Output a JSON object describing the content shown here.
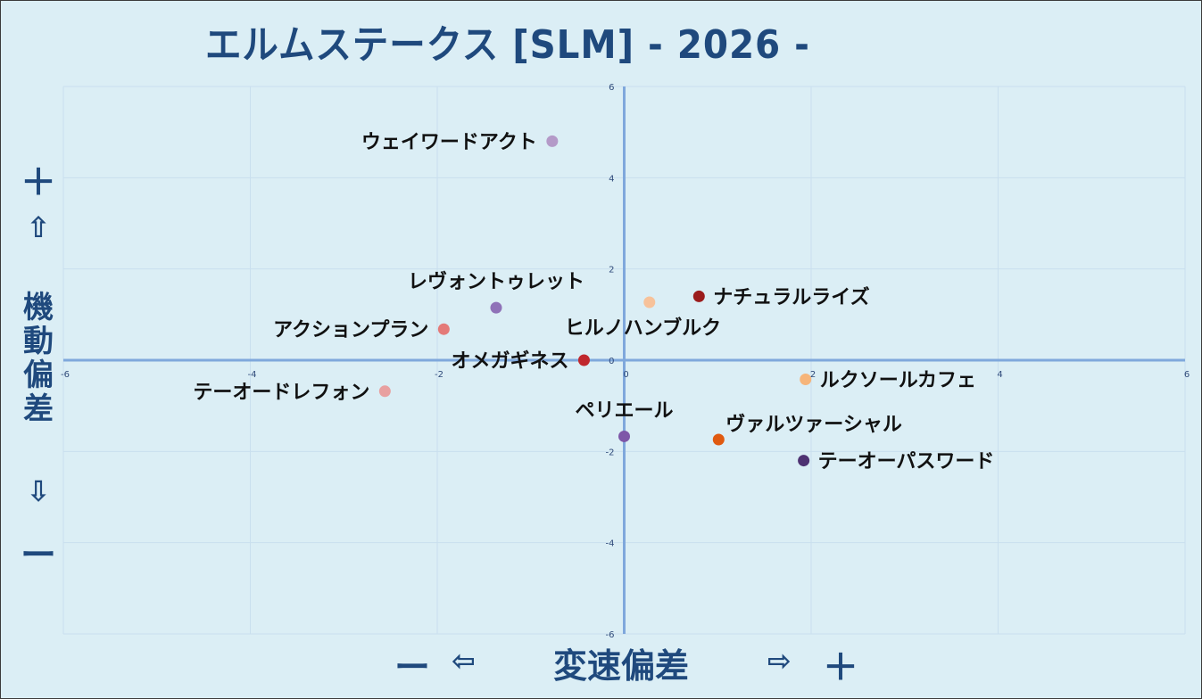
{
  "title": "エルムステークス [SLM]  - 2026 -",
  "y_axis": {
    "plus": "＋",
    "up_arrow": "⇧",
    "label": "機動偏差",
    "down_arrow": "⇩",
    "minus": "ー"
  },
  "x_axis": {
    "minus": "ー",
    "left_arrow": "⇦",
    "label": "変速偏差",
    "right_arrow": "⇨",
    "plus": "＋"
  },
  "chart_data": {
    "type": "scatter",
    "title": "エルムステークス [SLM]  - 2026 -",
    "xlabel": "変速偏差",
    "ylabel": "機動偏差",
    "xlim": [
      -6,
      6
    ],
    "ylim": [
      -6,
      6
    ],
    "x_ticks": [
      "-6",
      "-4",
      "-2",
      "0",
      "2",
      "4",
      "6"
    ],
    "y_ticks": [
      "6",
      "4",
      "2",
      "0",
      "-2",
      "-4",
      "-6"
    ],
    "grid": true,
    "points": [
      {
        "label": "ウェイワードアクト",
        "x": -0.77,
        "y": 4.8,
        "color": "#b49ac8",
        "label_side": "left"
      },
      {
        "label": "レヴォントゥレット",
        "x": -1.37,
        "y": 1.15,
        "color": "#8f72b8",
        "label_side": "above"
      },
      {
        "label": "アクションプラン",
        "x": -1.93,
        "y": 0.68,
        "color": "#e47a78",
        "label_side": "left"
      },
      {
        "label": "ヒルノハンブルク",
        "x": 0.27,
        "y": 1.27,
        "color": "#f7c29a",
        "label_side": "below"
      },
      {
        "label": "ナチュラルライズ",
        "x": 0.8,
        "y": 1.4,
        "color": "#9b1c1c",
        "label_side": "right"
      },
      {
        "label": "オメガギネス",
        "x": -0.43,
        "y": 0.0,
        "color": "#c0272d",
        "label_side": "left"
      },
      {
        "label": "テーオードレフォン",
        "x": -2.56,
        "y": -0.68,
        "color": "#e8a0a0",
        "label_side": "left"
      },
      {
        "label": "ルクソールカフェ",
        "x": 1.94,
        "y": -0.42,
        "color": "#f6b57a",
        "label_side": "right"
      },
      {
        "label": "ペリエール",
        "x": 0.0,
        "y": -1.67,
        "color": "#7e57a8",
        "label_side": "above"
      },
      {
        "label": "ヴァルツァーシャル",
        "x": 1.01,
        "y": -1.74,
        "color": "#e05a10",
        "label_side": "above-right"
      },
      {
        "label": "テーオーパスワード",
        "x": 1.92,
        "y": -2.2,
        "color": "#4e3272",
        "label_side": "right"
      }
    ]
  }
}
